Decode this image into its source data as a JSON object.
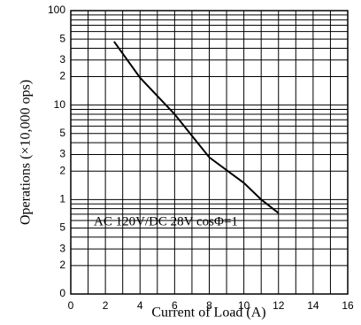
{
  "chart_data": {
    "type": "line",
    "x_label": "Current of Load (A)",
    "y_label": "Operations (×10,000 ops)",
    "annotation": "AC 120V/DC 28V cosΦ=1",
    "x": [
      2.5,
      4,
      6,
      8,
      10,
      11,
      12
    ],
    "series": [
      {
        "color": "#000000",
        "values": [
          47,
          19.5,
          8,
          2.8,
          1.5,
          1.0,
          0.72
        ]
      }
    ],
    "xlim": [
      0,
      16
    ],
    "xticks": [
      0,
      2,
      4,
      6,
      8,
      10,
      12,
      14,
      16
    ],
    "x_minor_grid": [
      1,
      3,
      5,
      7,
      9,
      11,
      13,
      15
    ],
    "ylim": [
      0.1,
      100
    ],
    "log_y": true,
    "grid": true,
    "yticks": [
      {
        "value": 0.1,
        "label": "0"
      },
      {
        "value": 0.2,
        "label": "2"
      },
      {
        "value": 0.3,
        "label": "3"
      },
      {
        "value": 0.5,
        "label": "5"
      },
      1,
      {
        "value": 2,
        "label": "2"
      },
      {
        "value": 3,
        "label": "3"
      },
      {
        "value": 5,
        "label": "5"
      },
      10,
      {
        "value": 20,
        "label": "2"
      },
      {
        "value": 30,
        "label": "3"
      },
      {
        "value": 50,
        "label": "5"
      },
      100
    ],
    "y_minor_grid": [
      0.4,
      0.6,
      0.7,
      0.8,
      0.9,
      4,
      6,
      7,
      8,
      9,
      40,
      60,
      70,
      80,
      90
    ]
  }
}
